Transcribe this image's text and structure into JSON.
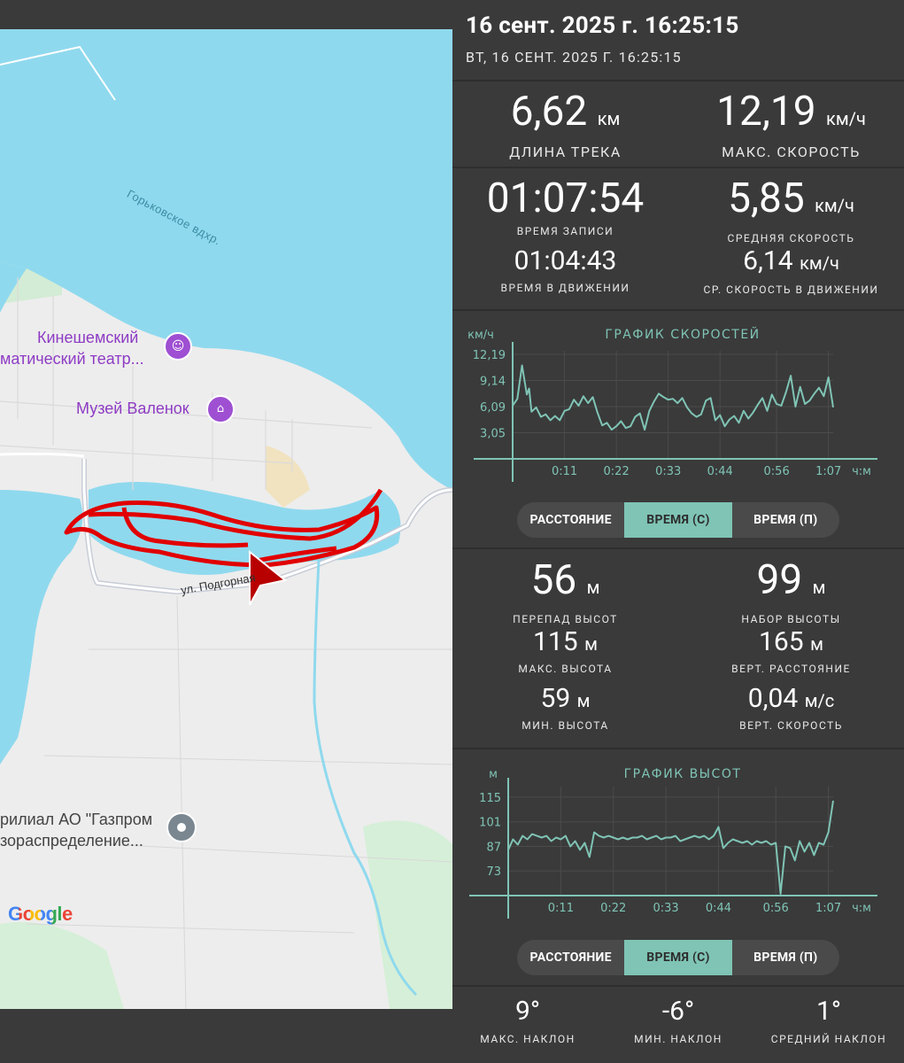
{
  "header": {
    "date_title": "16 сент. 2025 г. 16:25:15",
    "date_subtitle": "ВТ, 16 СЕНТ. 2025 Г. 16:25:15"
  },
  "stats_top": {
    "track_length": {
      "value": "6,62",
      "unit": "км",
      "label": "ДЛИНА ТРЕКА"
    },
    "max_speed": {
      "value": "12,19",
      "unit": "км/ч",
      "label": "МАКС. СКОРОСТЬ"
    }
  },
  "stats_time": {
    "record_time": {
      "value": "01:07:54",
      "label": "ВРЕМЯ ЗАПИСИ"
    },
    "avg_speed": {
      "value": "5,85",
      "unit": "км/ч",
      "label": "СРЕДНЯЯ СКОРОСТЬ"
    },
    "moving_time": {
      "value": "01:04:43",
      "label": "ВРЕМЯ В ДВИЖЕНИИ"
    },
    "avg_moving_speed": {
      "value": "6,14",
      "unit": "км/ч",
      "label": "СР. СКОРОСТЬ В ДВИЖЕНИИ"
    }
  },
  "speed_chart_ui": {
    "title": "ГРАФИК СКОРОСТЕЙ",
    "y_unit": "км/ч",
    "y_ticks": [
      "12,19",
      "9,14",
      "6,09",
      "3,05"
    ],
    "x_ticks": [
      "0:11",
      "0:22",
      "0:33",
      "0:44",
      "0:56",
      "1:07"
    ],
    "x_unit": "ч:м"
  },
  "toggle_speed": {
    "options": [
      "РАССТОЯНИЕ",
      "ВРЕМЯ (С)",
      "ВРЕМЯ (П)"
    ],
    "selected": "ВРЕМЯ (С)"
  },
  "stats_elevation": {
    "elev_diff": {
      "value": "56",
      "unit": "м",
      "label": "ПЕРЕПАД ВЫСОТ"
    },
    "elev_gain": {
      "value": "99",
      "unit": "м",
      "label": "НАБОР ВЫСОТЫ"
    },
    "max_elev": {
      "value": "115",
      "unit": "м",
      "label": "МАКС. ВЫСОТА"
    },
    "vert_distance": {
      "value": "165",
      "unit": "м",
      "label": "ВЕРТ. РАССТОЯНИЕ"
    },
    "min_elev": {
      "value": "59",
      "unit": "м",
      "label": "МИН. ВЫСОТА"
    },
    "vert_speed": {
      "value": "0,04",
      "unit": "м/с",
      "label": "ВЕРТ. СКОРОСТЬ"
    }
  },
  "elev_chart_ui": {
    "title": "ГРАФИК ВЫСОТ",
    "y_unit": "м",
    "y_ticks": [
      "115",
      "101",
      "87",
      "73"
    ],
    "x_ticks": [
      "0:11",
      "0:22",
      "0:33",
      "0:44",
      "0:56",
      "1:07"
    ],
    "x_unit": "ч:м"
  },
  "toggle_elev": {
    "options": [
      "РАССТОЯНИЕ",
      "ВРЕМЯ (С)",
      "ВРЕМЯ (П)"
    ],
    "selected": "ВРЕМЯ (С)"
  },
  "stats_slope": {
    "max_slope": {
      "value": "9°",
      "label": "МАКС. НАКЛОН"
    },
    "min_slope": {
      "value": "-6°",
      "label": "МИН. НАКЛОН"
    },
    "avg_slope": {
      "value": "1°",
      "label": "СРЕДНИЙ НАКЛОН"
    }
  },
  "map": {
    "water_label": "Горьковское вдхр.",
    "poi_theatre_line1": "Кинешемский",
    "poi_theatre_line2": "матический театр...",
    "poi_museum": "Музей Валенок",
    "street": "ул. Подгорная",
    "poi_gazprom_line1": "рилиал АО \"Газпром",
    "poi_gazprom_line2": "зораспределение...",
    "google": "Google"
  },
  "chart_data": [
    {
      "type": "line",
      "title": "ГРАФИК СКОРОСТЕЙ",
      "xlabel": "ч:м",
      "ylabel": "км/ч",
      "x_unit": "minutes",
      "xlim": [
        0,
        68
      ],
      "ylim": [
        0,
        12.19
      ],
      "x": [
        0,
        1,
        2,
        3,
        3.5,
        4,
        5,
        6,
        7,
        8,
        9,
        10,
        11,
        12,
        13,
        14,
        15,
        16,
        17,
        18,
        19,
        20,
        21,
        22,
        23,
        24,
        25,
        26,
        27,
        28,
        29,
        30,
        31,
        32,
        33,
        34,
        35,
        36,
        37,
        38,
        39,
        40,
        41,
        42,
        43,
        44,
        45,
        46,
        47,
        48,
        49,
        50,
        51,
        52,
        53,
        54,
        55,
        56,
        57,
        58,
        59,
        60,
        61,
        62,
        63,
        64,
        65,
        66,
        67,
        68
      ],
      "values": [
        6.2,
        7.0,
        10.9,
        7.5,
        8.2,
        5.5,
        6.0,
        4.9,
        5.2,
        4.5,
        5.0,
        4.5,
        5.6,
        5.8,
        6.9,
        6.2,
        7.3,
        6.5,
        7.2,
        5.4,
        3.9,
        4.2,
        3.4,
        3.8,
        4.4,
        3.6,
        3.8,
        4.9,
        5.3,
        3.4,
        5.6,
        6.7,
        7.6,
        7.2,
        6.9,
        7.0,
        6.5,
        7.1,
        6.0,
        5.3,
        4.9,
        5.2,
        6.8,
        7.1,
        4.5,
        5.1,
        3.8,
        4.6,
        5.0,
        4.2,
        5.6,
        4.7,
        5.4,
        6.3,
        7.1,
        5.6,
        7.5,
        6.4,
        6.2,
        7.8,
        9.7,
        6.1,
        8.4,
        6.4,
        6.8,
        7.6,
        8.3,
        7.3,
        9.5,
        6.0
      ]
    },
    {
      "type": "line",
      "title": "ГРАФИК ВЫСОТ",
      "xlabel": "ч:м",
      "ylabel": "м",
      "x_unit": "minutes",
      "xlim": [
        0,
        68
      ],
      "ylim": [
        59,
        119
      ],
      "x": [
        0,
        1,
        2,
        3,
        4,
        5,
        6,
        7,
        8,
        9,
        10,
        11,
        12,
        13,
        14,
        15,
        16,
        17,
        18,
        19,
        20,
        21,
        22,
        23,
        24,
        25,
        26,
        27,
        28,
        29,
        30,
        31,
        32,
        33,
        34,
        35,
        36,
        37,
        38,
        39,
        40,
        41,
        42,
        43,
        44,
        45,
        46,
        47,
        48,
        49,
        50,
        51,
        52,
        53,
        54,
        55,
        56,
        57,
        58,
        59,
        60,
        61,
        62,
        63,
        64,
        65,
        66,
        67,
        68
      ],
      "values": [
        85,
        91,
        88,
        93,
        91,
        94,
        93,
        92,
        93,
        90,
        92,
        91,
        93,
        87,
        90,
        85,
        89,
        81,
        95,
        93,
        92,
        93,
        92,
        91,
        92,
        91,
        92,
        92,
        93,
        91,
        92,
        93,
        91,
        92,
        92,
        93,
        90,
        91,
        92,
        93,
        92,
        93,
        91,
        93,
        98,
        86,
        89,
        91,
        90,
        89,
        90,
        88,
        90,
        89,
        90,
        88,
        89,
        60,
        87,
        86,
        79,
        90,
        84,
        89,
        82,
        89,
        88,
        95,
        113
      ]
    }
  ]
}
